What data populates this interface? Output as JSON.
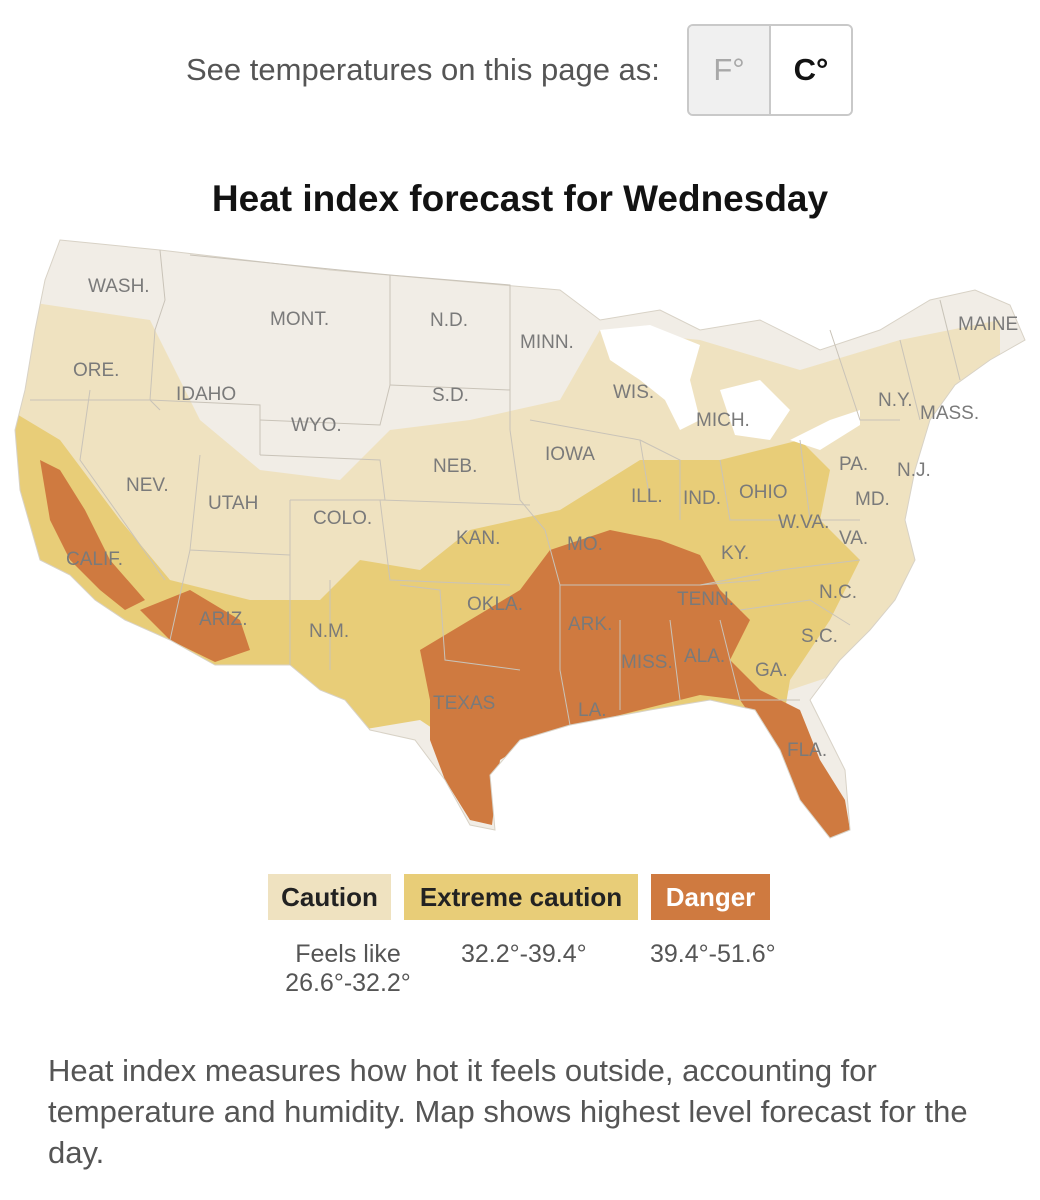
{
  "unit_toggle": {
    "prompt": "See temperatures on this page as:",
    "options": [
      "F°",
      "C°"
    ],
    "selected": "C°"
  },
  "map": {
    "title": "Heat index forecast for Wednesday",
    "colors": {
      "none": "#f1ede6",
      "caution": "#efe2c0",
      "extreme_caution": "#e8cd78",
      "danger": "#cf7a40",
      "border": "#c9c3b8"
    },
    "state_labels": [
      "WASH.",
      "MONT.",
      "N.D.",
      "MINN.",
      "MAINE",
      "ORE.",
      "IDAHO",
      "S.D.",
      "WIS.",
      "N.Y.",
      "MASS.",
      "MICH.",
      "WYO.",
      "IOWA",
      "NEB.",
      "PA.",
      "N.J.",
      "NEV.",
      "UTAH",
      "ILL.",
      "IND.",
      "OHIO",
      "MD.",
      "COLO.",
      "W.VA.",
      "KAN.",
      "VA.",
      "MO.",
      "KY.",
      "CALIF.",
      "N.C.",
      "OKLA.",
      "TENN.",
      "ARIZ.",
      "N.M.",
      "ARK.",
      "S.C.",
      "MISS.",
      "ALA.",
      "GA.",
      "TEXAS",
      "LA.",
      "FLA."
    ]
  },
  "legend": {
    "items": [
      {
        "label": "Caution",
        "range_prefix": "Feels like",
        "range": "26.6°-32.2°"
      },
      {
        "label": "Extreme caution",
        "range": "32.2°-39.4°"
      },
      {
        "label": "Danger",
        "range": "39.4°-51.6°"
      }
    ]
  },
  "note": "Heat index measures how hot it feels outside, accounting for temperature and humidity. Map shows highest level forecast for the day."
}
